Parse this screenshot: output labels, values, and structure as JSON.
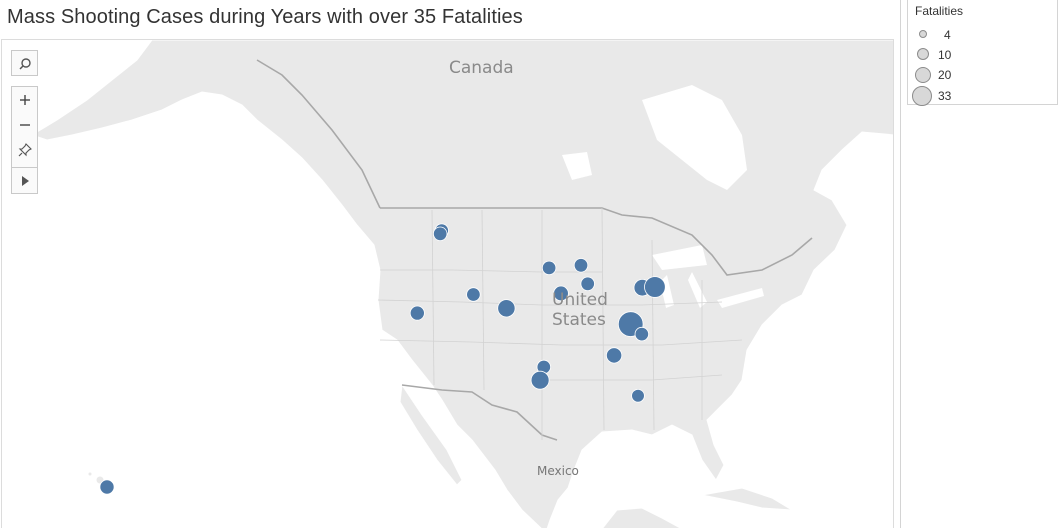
{
  "title": "Mass Shooting Cases during Years with over 35 Fatalities",
  "legend": {
    "title": "Fatalities",
    "items": [
      {
        "label": "4",
        "value": 4
      },
      {
        "label": "10",
        "value": 10
      },
      {
        "label": "20",
        "value": 20
      },
      {
        "label": "33",
        "value": 33
      }
    ]
  },
  "map_labels": {
    "canada": "Canada",
    "us_line1": "United",
    "us_line2": "States",
    "mexico": "Mexico"
  },
  "toolbar": {
    "search": "search-icon",
    "zoom_in": "plus-icon",
    "zoom_out": "minus-icon",
    "pin": "pin-icon",
    "expand": "play-icon"
  },
  "colors": {
    "marker": "#4e79a7",
    "land": "#e9e9e9",
    "water": "#ffffff",
    "border": "#a8a8a8"
  },
  "chart_data": {
    "type": "scatter",
    "title": "Mass Shooting Cases during Years with over 35 Fatalities",
    "size_by": "Fatalities",
    "points": [
      {
        "lon": -122.3,
        "lat": 47.6,
        "fatalities": 5
      },
      {
        "lon": -122.4,
        "lat": 47.2,
        "fatalities": 5
      },
      {
        "lon": -121.9,
        "lat": 37.3,
        "fatalities": 6
      },
      {
        "lon": -111.9,
        "lat": 40.8,
        "fatalities": 5
      },
      {
        "lon": -104.8,
        "lat": 39.6,
        "fatalities": 12
      },
      {
        "lon": -96.2,
        "lat": 44.7,
        "fatalities": 5
      },
      {
        "lon": -93.7,
        "lat": 41.6,
        "fatalities": 7
      },
      {
        "lon": -89.0,
        "lat": 44.9,
        "fatalities": 5
      },
      {
        "lon": -87.9,
        "lat": 42.6,
        "fatalities": 5
      },
      {
        "lon": -76.6,
        "lat": 41.3,
        "fatalities": 10
      },
      {
        "lon": -74.0,
        "lat": 41.1,
        "fatalities": 20
      },
      {
        "lon": -80.4,
        "lat": 37.2,
        "fatalities": 33
      },
      {
        "lon": -78.7,
        "lat": 35.8,
        "fatalities": 5
      },
      {
        "lon": -84.4,
        "lat": 33.7,
        "fatalities": 8
      },
      {
        "lon": -97.1,
        "lat": 32.7,
        "fatalities": 5
      },
      {
        "lon": -97.7,
        "lat": 31.1,
        "fatalities": 13
      },
      {
        "lon": -81.4,
        "lat": 28.5,
        "fatalities": 4
      },
      {
        "lon": -155.5,
        "lat": 19.7,
        "fatalities": 6
      }
    ]
  }
}
